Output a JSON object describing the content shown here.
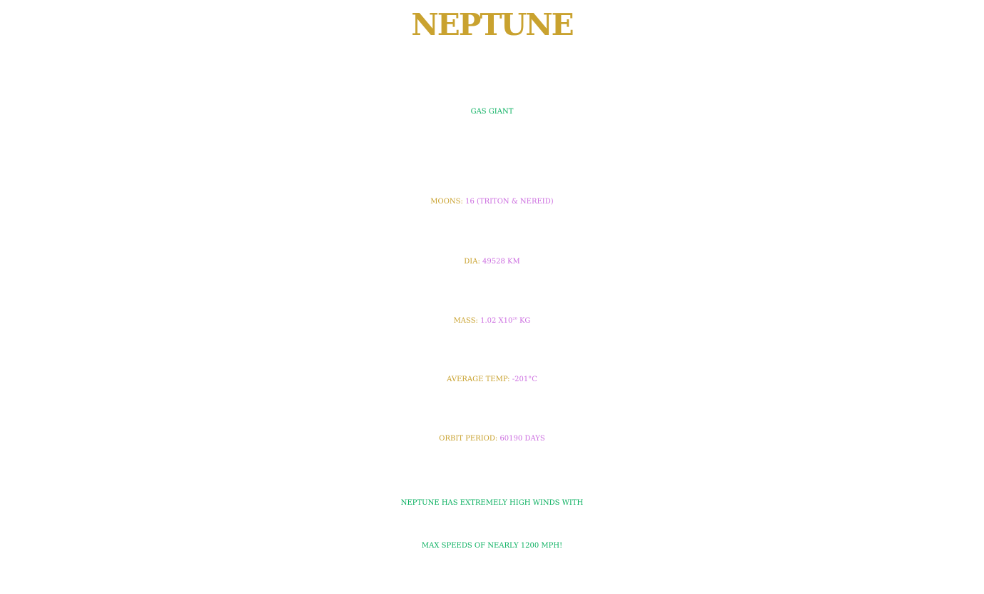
{
  "colors": {
    "gold": "#c9a22f",
    "green": "#0ab060",
    "violet": "#cc6ee0"
  },
  "title": "NEPTUNE",
  "subtitle": "GAS GIANT",
  "facts": {
    "moons": {
      "label": "MOONS: ",
      "value": "16 (TRITON & NEREID)"
    },
    "diameter": {
      "label": "DIA: ",
      "value": "49528 KM"
    },
    "mass": {
      "label": "MASS: ",
      "value_base": "1.02 X10",
      "value_exponent": "26",
      "value_unit": " KG"
    },
    "temperature": {
      "label": "AVERAGE TEMP: ",
      "value": "-201°C"
    },
    "orbit": {
      "label": "ORBIT PERIOD: ",
      "value": "60190 DAYS"
    }
  },
  "note": {
    "line1": "NEPTUNE HAS EXTREMELY HIGH WINDS WITH",
    "line2": "MAX SPEEDS OF  NEARLY 1200 MPH!"
  }
}
